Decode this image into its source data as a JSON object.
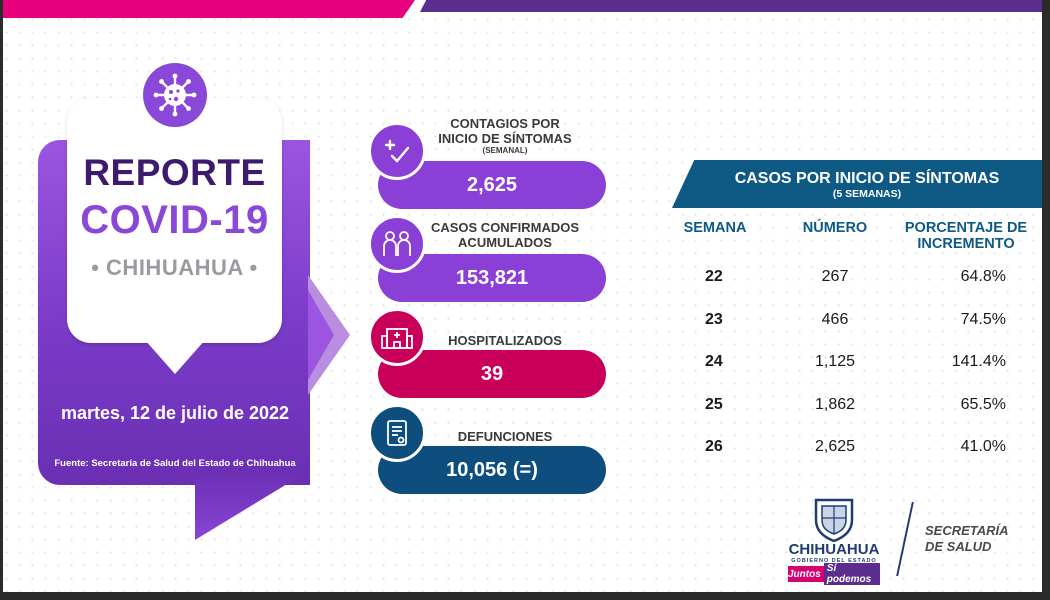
{
  "report": {
    "title_line1": "REPORTE",
    "title_line2": "COVID-19",
    "title_line3": "• CHIHUAHUA •",
    "date": "martes, 12 de julio de 2022",
    "source": "Fuente: Secretaría de Salud del Estado de Chihuahua"
  },
  "stats": [
    {
      "label_line1": "CONTAGIOS POR",
      "label_line2": "INICIO DE SÍNTOMAS",
      "sublabel": "(SEMANAL)",
      "value": "2,625",
      "icon": "syringe-check-icon",
      "color": "#8a3fd6"
    },
    {
      "label_line1": "CASOS CONFIRMADOS",
      "label_line2": "ACUMULADOS",
      "value": "153,821",
      "icon": "people-masks-icon",
      "color": "#8a3fd6"
    },
    {
      "label_line1": "HOSPITALIZADOS",
      "value": "39",
      "icon": "hospital-icon",
      "color": "#c8005a"
    },
    {
      "label_line1": "DEFUNCIONES",
      "value": "10,056 (=)",
      "icon": "certificate-icon",
      "color": "#0e4e7e"
    }
  ],
  "table": {
    "title": "CASOS POR INICIO DE SÍNTOMAS",
    "subtitle": "(5 SEMANAS)",
    "columns": [
      "SEMANA",
      "NÚMERO",
      "PORCENTAJE DE INCREMENTO"
    ],
    "col3_line1": "PORCENTAJE DE",
    "col3_line2": "INCREMENTO",
    "rows": [
      {
        "semana": "22",
        "numero": "267",
        "porcentaje": "64.8%"
      },
      {
        "semana": "23",
        "numero": "466",
        "porcentaje": "74.5%"
      },
      {
        "semana": "24",
        "numero": "1,125",
        "porcentaje": "141.4%"
      },
      {
        "semana": "25",
        "numero": "1,862",
        "porcentaje": "65.5%"
      },
      {
        "semana": "26",
        "numero": "2,625",
        "porcentaje": "41.0%"
      }
    ]
  },
  "logos": {
    "state": "CHIHUAHUA",
    "state_sub": "GOBIERNO DEL ESTADO",
    "slogan_a": "Juntos",
    "slogan_b": "Sí podemos",
    "dept_line1": "SECRETARÍA",
    "dept_line2": "DE SALUD"
  },
  "colors": {
    "purple": "#8a3fd6",
    "dark_purple": "#3e1a6e",
    "magenta": "#c8005a",
    "navy": "#0e4e7e",
    "table_blue": "#0e5a85"
  }
}
